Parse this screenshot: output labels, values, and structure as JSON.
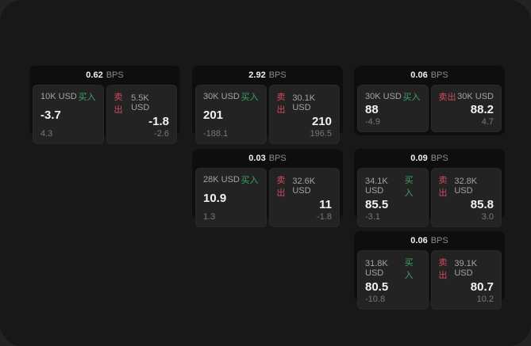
{
  "window": {
    "background": "#232323",
    "panel_background": "#181818"
  },
  "labels": {
    "buy": "买入",
    "sell": "卖出",
    "bps_unit": "BPS"
  },
  "colors": {
    "buy": "#3aa564",
    "sell": "#d14b60",
    "card_background": "#0e0e0e",
    "tile_background": "#232323"
  },
  "cards": [
    {
      "bps": "0.62",
      "buy": {
        "amount": "10K USD",
        "price": "-3.7",
        "delta": "4.3"
      },
      "sell": {
        "amount": "5.5K USD",
        "price": "-1.8",
        "delta": "-2.6"
      }
    },
    {
      "bps": "2.92",
      "buy": {
        "amount": "30K USD",
        "price": "201",
        "delta": "-188.1"
      },
      "sell": {
        "amount": "30.1K USD",
        "price": "210",
        "delta": "196.5"
      }
    },
    {
      "bps": "0.06",
      "buy": {
        "amount": "30K USD",
        "price": "88",
        "delta": "-4.9"
      },
      "sell": {
        "amount": "30K USD",
        "price": "88.2",
        "delta": "4.7"
      }
    },
    {
      "bps": "0.03",
      "buy": {
        "amount": "28K USD",
        "price": "10.9",
        "delta": "1.3"
      },
      "sell": {
        "amount": "32.6K USD",
        "price": "11",
        "delta": "-1.8"
      }
    },
    {
      "bps": "0.09",
      "buy": {
        "amount": "34.1K USD",
        "price": "85.5",
        "delta": "-3.1"
      },
      "sell": {
        "amount": "32.8K USD",
        "price": "85.8",
        "delta": "3.0"
      }
    },
    {
      "bps": "0.06",
      "buy": {
        "amount": "31.8K USD",
        "price": "80.5",
        "delta": "-10.8"
      },
      "sell": {
        "amount": "39.1K USD",
        "price": "80.7",
        "delta": "10.2"
      }
    }
  ]
}
